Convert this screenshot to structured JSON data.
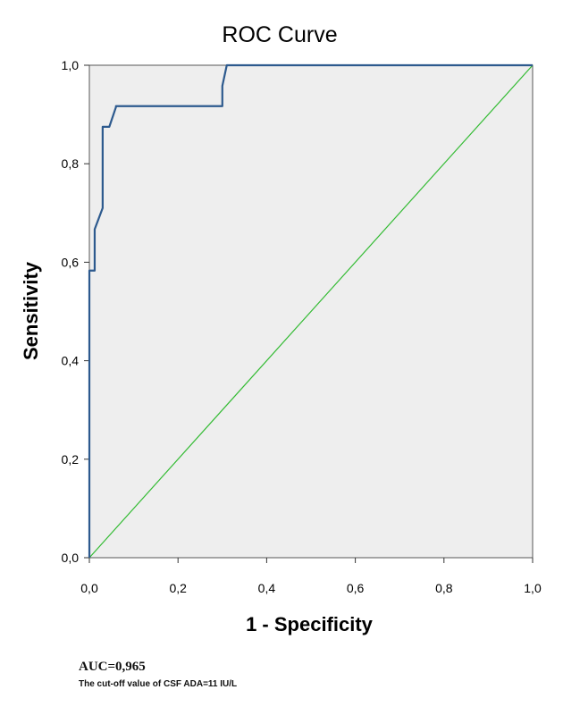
{
  "chart_data": {
    "type": "line",
    "title": "ROC Curve",
    "xlabel": "1 - Specificity",
    "ylabel": "Sensitivity",
    "xlim": [
      0,
      1
    ],
    "ylim": [
      0,
      1
    ],
    "x_ticks": [
      "0,0",
      "0,2",
      "0,4",
      "0,6",
      "0,8",
      "1,0"
    ],
    "y_ticks": [
      "0,0",
      "0,2",
      "0,4",
      "0,6",
      "0,8",
      "1,0"
    ],
    "grid": false,
    "colors": {
      "roc": "#2d5a8e",
      "reference": "#33bb33",
      "plot_bg": "#eeeeee",
      "frame": "#555555"
    },
    "series": [
      {
        "x": [
          0,
          0,
          0.012,
          0.012,
          0.03,
          0.03,
          0.045,
          0.06,
          0.06,
          0.3,
          0.3,
          0.31,
          0.31,
          1.0
        ],
        "y": [
          0,
          0.583,
          0.583,
          0.667,
          0.71,
          0.875,
          0.875,
          0.915,
          0.917,
          0.917,
          0.958,
          1.0,
          1.0,
          1.0
        ]
      },
      {
        "x": [
          0,
          1
        ],
        "y": [
          0,
          1
        ]
      }
    ]
  },
  "annotations": {
    "auc": "AUC=0,965",
    "cutoff": "The cut-off value of CSF ADA=11 IU/L"
  }
}
